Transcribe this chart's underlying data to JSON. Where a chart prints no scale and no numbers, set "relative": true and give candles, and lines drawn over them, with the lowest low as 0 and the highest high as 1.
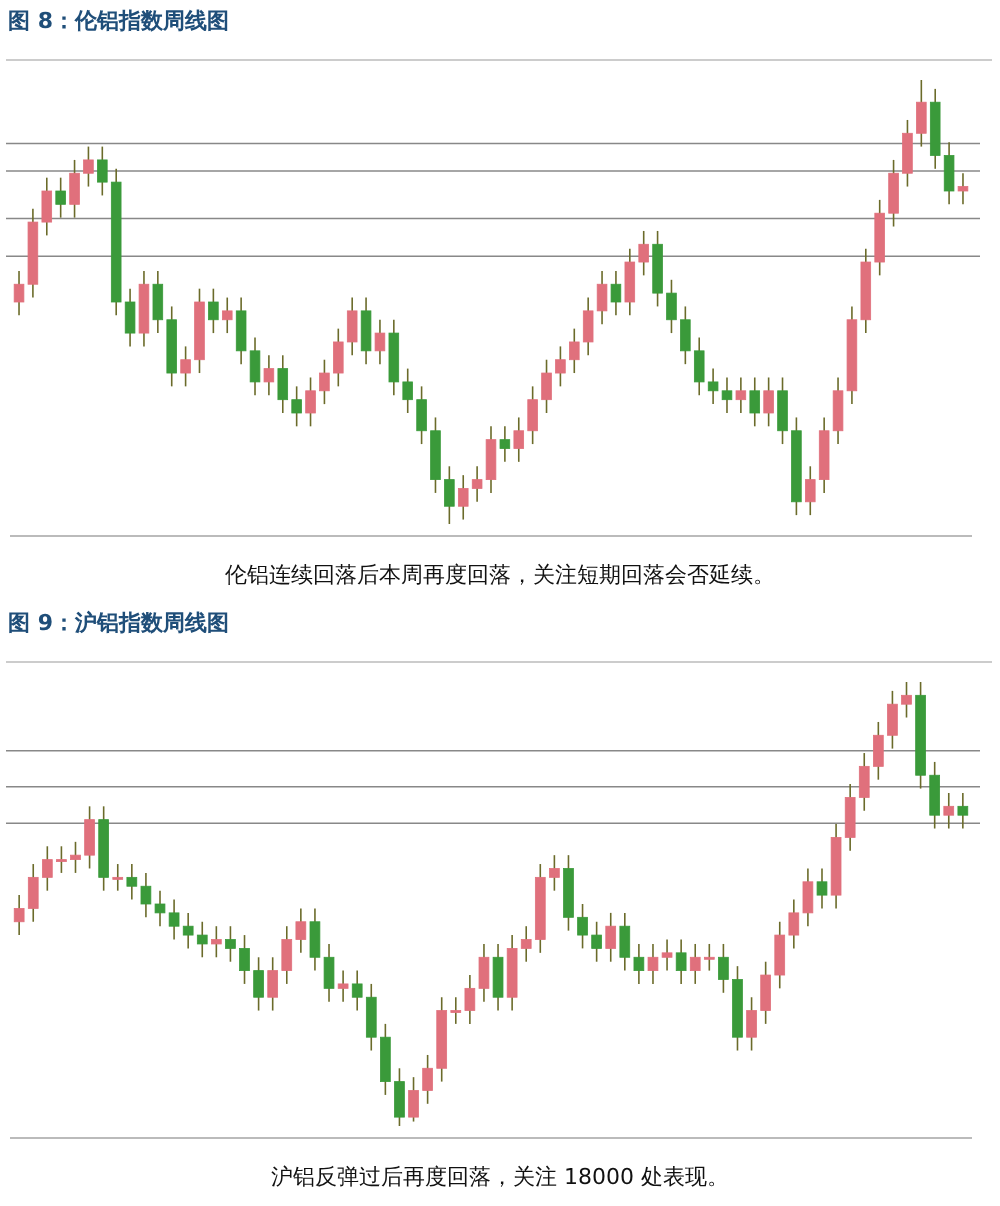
{
  "chart_data": [
    {
      "type": "candlestick",
      "title": "图 8：伦铝指数周线图",
      "relative": true,
      "categories": [
        null,
        null,
        null,
        null,
        null,
        null,
        null,
        null,
        null,
        null,
        null,
        null,
        null,
        null,
        null,
        null,
        null,
        null,
        null,
        null,
        null,
        null,
        null,
        null,
        null,
        null,
        null,
        null,
        null,
        null,
        null,
        null,
        null,
        null,
        null,
        null,
        null,
        null,
        null,
        null,
        null,
        null,
        null,
        null,
        null,
        null,
        null,
        null,
        null,
        null,
        null,
        null,
        null,
        null,
        null,
        null,
        null,
        null,
        null,
        null,
        null,
        null,
        null,
        null,
        null,
        null,
        null,
        null,
        null
      ],
      "ohlc": [
        [
          0.5,
          0.57,
          0.47,
          0.54
        ],
        [
          0.54,
          0.71,
          0.51,
          0.68
        ],
        [
          0.68,
          0.78,
          0.65,
          0.75
        ],
        [
          0.75,
          0.78,
          0.69,
          0.72
        ],
        [
          0.72,
          0.82,
          0.69,
          0.79
        ],
        [
          0.79,
          0.85,
          0.76,
          0.82
        ],
        [
          0.82,
          0.85,
          0.74,
          0.77
        ],
        [
          0.77,
          0.8,
          0.47,
          0.5
        ],
        [
          0.5,
          0.53,
          0.4,
          0.43
        ],
        [
          0.43,
          0.57,
          0.4,
          0.54
        ],
        [
          0.54,
          0.57,
          0.43,
          0.46
        ],
        [
          0.46,
          0.49,
          0.31,
          0.34
        ],
        [
          0.34,
          0.4,
          0.31,
          0.37
        ],
        [
          0.37,
          0.53,
          0.34,
          0.5
        ],
        [
          0.5,
          0.53,
          0.43,
          0.46
        ],
        [
          0.46,
          0.51,
          0.43,
          0.48
        ],
        [
          0.48,
          0.51,
          0.36,
          0.39
        ],
        [
          0.39,
          0.42,
          0.29,
          0.32
        ],
        [
          0.32,
          0.38,
          0.29,
          0.35
        ],
        [
          0.35,
          0.38,
          0.25,
          0.28
        ],
        [
          0.28,
          0.31,
          0.22,
          0.25
        ],
        [
          0.25,
          0.33,
          0.22,
          0.3
        ],
        [
          0.3,
          0.37,
          0.27,
          0.34
        ],
        [
          0.34,
          0.44,
          0.31,
          0.41
        ],
        [
          0.41,
          0.51,
          0.38,
          0.48
        ],
        [
          0.48,
          0.51,
          0.36,
          0.39
        ],
        [
          0.39,
          0.46,
          0.36,
          0.43
        ],
        [
          0.43,
          0.46,
          0.29,
          0.32
        ],
        [
          0.32,
          0.35,
          0.25,
          0.28
        ],
        [
          0.28,
          0.31,
          0.18,
          0.21
        ],
        [
          0.21,
          0.24,
          0.07,
          0.1
        ],
        [
          0.1,
          0.13,
          0.0,
          0.04
        ],
        [
          0.04,
          0.11,
          0.01,
          0.08
        ],
        [
          0.08,
          0.13,
          0.05,
          0.1
        ],
        [
          0.1,
          0.22,
          0.07,
          0.19
        ],
        [
          0.19,
          0.22,
          0.14,
          0.17
        ],
        [
          0.17,
          0.24,
          0.14,
          0.21
        ],
        [
          0.21,
          0.31,
          0.18,
          0.28
        ],
        [
          0.28,
          0.37,
          0.25,
          0.34
        ],
        [
          0.34,
          0.4,
          0.31,
          0.37
        ],
        [
          0.37,
          0.44,
          0.34,
          0.41
        ],
        [
          0.41,
          0.51,
          0.38,
          0.48
        ],
        [
          0.48,
          0.57,
          0.45,
          0.54
        ],
        [
          0.54,
          0.57,
          0.47,
          0.5
        ],
        [
          0.5,
          0.62,
          0.47,
          0.59
        ],
        [
          0.59,
          0.66,
          0.56,
          0.63
        ],
        [
          0.63,
          0.66,
          0.49,
          0.52
        ],
        [
          0.52,
          0.55,
          0.43,
          0.46
        ],
        [
          0.46,
          0.49,
          0.36,
          0.39
        ],
        [
          0.39,
          0.42,
          0.29,
          0.32
        ],
        [
          0.32,
          0.35,
          0.27,
          0.3
        ],
        [
          0.3,
          0.33,
          0.25,
          0.28
        ],
        [
          0.28,
          0.33,
          0.25,
          0.3
        ],
        [
          0.3,
          0.33,
          0.22,
          0.25
        ],
        [
          0.25,
          0.33,
          0.22,
          0.3
        ],
        [
          0.3,
          0.33,
          0.18,
          0.21
        ],
        [
          0.21,
          0.24,
          0.02,
          0.05
        ],
        [
          0.05,
          0.13,
          0.02,
          0.1
        ],
        [
          0.1,
          0.24,
          0.07,
          0.21
        ],
        [
          0.21,
          0.33,
          0.18,
          0.3
        ],
        [
          0.3,
          0.49,
          0.27,
          0.46
        ],
        [
          0.46,
          0.62,
          0.43,
          0.59
        ],
        [
          0.59,
          0.73,
          0.56,
          0.7
        ],
        [
          0.7,
          0.82,
          0.67,
          0.79
        ],
        [
          0.79,
          0.91,
          0.76,
          0.88
        ],
        [
          0.88,
          1.0,
          0.85,
          0.95
        ],
        [
          0.95,
          0.98,
          0.8,
          0.83
        ],
        [
          0.83,
          0.86,
          0.72,
          0.75
        ],
        [
          0.75,
          0.79,
          0.72,
          0.76
        ]
      ],
      "ref_lines": [
        {
          "axis": "y",
          "value": 0.857
        },
        {
          "axis": "y",
          "value": 0.795
        },
        {
          "axis": "y",
          "value": 0.688
        },
        {
          "axis": "y",
          "value": 0.603
        }
      ],
      "annotations": [
        "伦铝连续回落后本周再度回落，关注短期回落会否延续。"
      ]
    },
    {
      "type": "candlestick",
      "title": "图 9：沪铝指数周线图",
      "relative": true,
      "categories": [
        null,
        null,
        null,
        null,
        null,
        null,
        null,
        null,
        null,
        null,
        null,
        null,
        null,
        null,
        null,
        null,
        null,
        null,
        null,
        null,
        null,
        null,
        null,
        null,
        null,
        null,
        null,
        null,
        null,
        null,
        null,
        null,
        null,
        null,
        null,
        null,
        null,
        null,
        null,
        null,
        null,
        null,
        null,
        null,
        null,
        null,
        null,
        null,
        null,
        null,
        null,
        null,
        null,
        null,
        null,
        null,
        null,
        null,
        null,
        null,
        null,
        null,
        null,
        null,
        null,
        null,
        null,
        null
      ],
      "ohlc": [
        [
          0.46,
          0.52,
          0.43,
          0.49
        ],
        [
          0.49,
          0.59,
          0.46,
          0.56
        ],
        [
          0.56,
          0.63,
          0.53,
          0.6
        ],
        [
          0.6,
          0.63,
          0.57,
          0.6
        ],
        [
          0.6,
          0.64,
          0.57,
          0.61
        ],
        [
          0.61,
          0.72,
          0.58,
          0.69
        ],
        [
          0.69,
          0.72,
          0.53,
          0.56
        ],
        [
          0.56,
          0.59,
          0.53,
          0.56
        ],
        [
          0.56,
          0.59,
          0.51,
          0.54
        ],
        [
          0.54,
          0.57,
          0.47,
          0.5
        ],
        [
          0.5,
          0.53,
          0.45,
          0.48
        ],
        [
          0.48,
          0.51,
          0.42,
          0.45
        ],
        [
          0.45,
          0.48,
          0.4,
          0.43
        ],
        [
          0.43,
          0.46,
          0.38,
          0.41
        ],
        [
          0.41,
          0.45,
          0.38,
          0.42
        ],
        [
          0.42,
          0.45,
          0.37,
          0.4
        ],
        [
          0.4,
          0.43,
          0.32,
          0.35
        ],
        [
          0.35,
          0.38,
          0.26,
          0.29
        ],
        [
          0.29,
          0.38,
          0.26,
          0.35
        ],
        [
          0.35,
          0.45,
          0.32,
          0.42
        ],
        [
          0.42,
          0.49,
          0.39,
          0.46
        ],
        [
          0.46,
          0.49,
          0.35,
          0.38
        ],
        [
          0.38,
          0.41,
          0.28,
          0.31
        ],
        [
          0.31,
          0.35,
          0.28,
          0.32
        ],
        [
          0.32,
          0.35,
          0.26,
          0.29
        ],
        [
          0.29,
          0.32,
          0.17,
          0.2
        ],
        [
          0.2,
          0.23,
          0.07,
          0.1
        ],
        [
          0.1,
          0.13,
          0.0,
          0.02
        ],
        [
          0.02,
          0.11,
          0.01,
          0.08
        ],
        [
          0.08,
          0.16,
          0.05,
          0.13
        ],
        [
          0.13,
          0.29,
          0.1,
          0.26
        ],
        [
          0.26,
          0.29,
          0.23,
          0.26
        ],
        [
          0.26,
          0.34,
          0.23,
          0.31
        ],
        [
          0.31,
          0.41,
          0.28,
          0.38
        ],
        [
          0.38,
          0.41,
          0.26,
          0.29
        ],
        [
          0.29,
          0.43,
          0.26,
          0.4
        ],
        [
          0.4,
          0.45,
          0.37,
          0.42
        ],
        [
          0.42,
          0.59,
          0.39,
          0.56
        ],
        [
          0.56,
          0.61,
          0.53,
          0.58
        ],
        [
          0.58,
          0.61,
          0.44,
          0.47
        ],
        [
          0.47,
          0.5,
          0.4,
          0.43
        ],
        [
          0.43,
          0.46,
          0.37,
          0.4
        ],
        [
          0.4,
          0.48,
          0.37,
          0.45
        ],
        [
          0.45,
          0.48,
          0.35,
          0.38
        ],
        [
          0.38,
          0.41,
          0.32,
          0.35
        ],
        [
          0.35,
          0.41,
          0.32,
          0.38
        ],
        [
          0.38,
          0.42,
          0.35,
          0.39
        ],
        [
          0.39,
          0.42,
          0.32,
          0.35
        ],
        [
          0.35,
          0.41,
          0.32,
          0.38
        ],
        [
          0.38,
          0.41,
          0.35,
          0.38
        ],
        [
          0.38,
          0.41,
          0.3,
          0.33
        ],
        [
          0.33,
          0.36,
          0.17,
          0.2
        ],
        [
          0.2,
          0.29,
          0.17,
          0.26
        ],
        [
          0.26,
          0.37,
          0.23,
          0.34
        ],
        [
          0.34,
          0.46,
          0.31,
          0.43
        ],
        [
          0.43,
          0.51,
          0.4,
          0.48
        ],
        [
          0.48,
          0.58,
          0.45,
          0.55
        ],
        [
          0.55,
          0.58,
          0.49,
          0.52
        ],
        [
          0.52,
          0.68,
          0.49,
          0.65
        ],
        [
          0.65,
          0.77,
          0.62,
          0.74
        ],
        [
          0.74,
          0.84,
          0.71,
          0.81
        ],
        [
          0.81,
          0.91,
          0.78,
          0.88
        ],
        [
          0.88,
          0.98,
          0.85,
          0.95
        ],
        [
          0.95,
          1.0,
          0.92,
          0.97
        ],
        [
          0.97,
          1.0,
          0.76,
          0.79
        ],
        [
          0.79,
          0.82,
          0.67,
          0.7
        ],
        [
          0.7,
          0.75,
          0.67,
          0.72
        ],
        [
          0.72,
          0.75,
          0.67,
          0.7
        ]
      ],
      "ref_lines": [
        {
          "axis": "y",
          "value": 0.845
        },
        {
          "axis": "y",
          "value": 0.764
        },
        {
          "axis": "y",
          "value": 0.682
        }
      ],
      "annotations": [
        "沪铝反弹过后再度回落，关注 18000 处表现。"
      ]
    }
  ]
}
